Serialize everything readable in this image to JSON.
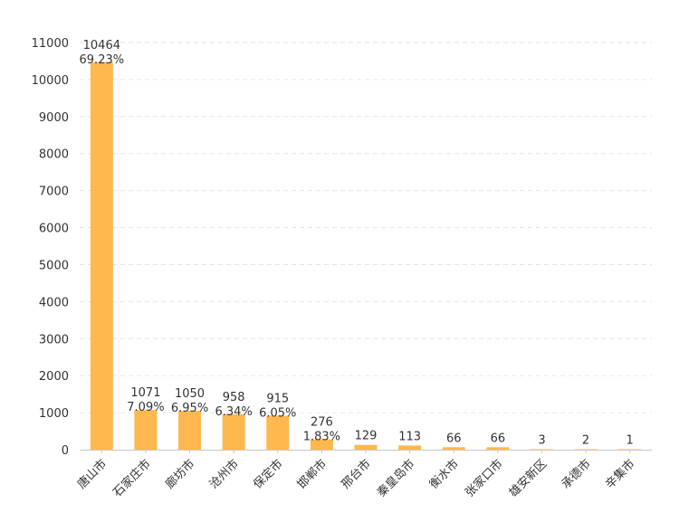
{
  "chart_data": {
    "type": "bar",
    "categories": [
      "唐山市",
      "石家庄市",
      "廊坊市",
      "沧州市",
      "保定市",
      "邯郸市",
      "邢台市",
      "秦皇岛市",
      "衡水市",
      "张家口市",
      "雄安新区",
      "承德市",
      "辛集市"
    ],
    "values": [
      10464,
      1071,
      1050,
      958,
      915,
      276,
      129,
      113,
      66,
      66,
      3,
      2,
      1
    ],
    "percent_labels": [
      "69.23%",
      "7.09%",
      "6.95%",
      "6.34%",
      "6.05%",
      "1.83%",
      "",
      "",
      "",
      "",
      "",
      "",
      ""
    ],
    "ylim": [
      0,
      11000
    ],
    "yticks": [
      0,
      1000,
      2000,
      3000,
      4000,
      5000,
      6000,
      7000,
      8000,
      9000,
      10000,
      11000
    ],
    "grid": true,
    "title": "",
    "xlabel": "",
    "ylabel": "",
    "bar_color": "#FFB84D"
  }
}
